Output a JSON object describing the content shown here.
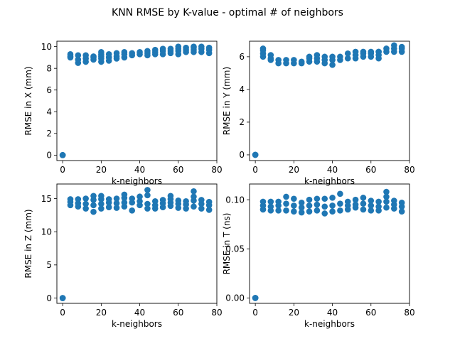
{
  "suptitle": "KNN RMSE by K-value - optimal # of neighbors",
  "marker_color": "#1f77b4",
  "chart_data": [
    {
      "type": "scatter",
      "xlabel": "k-neighbors",
      "ylabel": "RMSE in X (mm)",
      "xlim": [
        -3,
        80
      ],
      "ylim": [
        -0.5,
        10.5
      ],
      "xticks": [
        0,
        20,
        40,
        60,
        80
      ],
      "yticks": [
        0,
        2,
        4,
        6,
        8,
        10
      ],
      "ytick_labels": [
        "0",
        "2",
        "4",
        "6",
        "8",
        "10"
      ],
      "x": [
        0,
        0,
        0,
        4,
        4,
        4,
        8,
        8,
        8,
        12,
        12,
        12,
        16,
        16,
        16,
        20,
        20,
        20,
        20,
        20,
        24,
        24,
        24,
        28,
        28,
        28,
        32,
        32,
        32,
        36,
        36,
        40,
        40,
        44,
        44,
        44,
        48,
        48,
        48,
        52,
        52,
        52,
        56,
        56,
        56,
        60,
        60,
        60,
        60,
        64,
        64,
        64,
        68,
        68,
        68,
        68,
        72,
        72,
        72,
        76,
        76,
        76
      ],
      "y": [
        0,
        0,
        0,
        9.0,
        9.3,
        9.1,
        8.5,
        8.8,
        9.2,
        8.6,
        8.9,
        9.2,
        8.8,
        9.0,
        9.1,
        8.6,
        8.9,
        9.1,
        9.3,
        9.5,
        8.7,
        9.0,
        9.3,
        8.9,
        9.1,
        9.4,
        9.0,
        9.3,
        9.5,
        9.2,
        9.4,
        9.3,
        9.5,
        9.2,
        9.4,
        9.6,
        9.3,
        9.5,
        9.7,
        9.3,
        9.6,
        9.8,
        9.4,
        9.6,
        9.8,
        9.3,
        9.6,
        9.8,
        10.0,
        9.5,
        9.7,
        9.9,
        9.5,
        9.7,
        9.9,
        10.0,
        9.5,
        9.8,
        10.0,
        9.4,
        9.7,
        9.9
      ]
    },
    {
      "type": "scatter",
      "xlabel": "k-neighbors",
      "ylabel": "RMSE in Y (mm)",
      "xlim": [
        -3,
        80
      ],
      "ylim": [
        -0.35,
        6.95
      ],
      "xticks": [
        0,
        20,
        40,
        60,
        80
      ],
      "yticks": [
        0,
        2,
        4,
        6
      ],
      "ytick_labels": [
        "0",
        "2",
        "4",
        "6"
      ],
      "x": [
        0,
        0,
        0,
        4,
        4,
        4,
        4,
        8,
        8,
        8,
        12,
        12,
        16,
        16,
        20,
        20,
        24,
        24,
        28,
        28,
        28,
        32,
        32,
        32,
        36,
        36,
        36,
        40,
        40,
        40,
        44,
        44,
        48,
        48,
        52,
        52,
        52,
        56,
        56,
        56,
        60,
        60,
        60,
        64,
        64,
        64,
        64,
        68,
        68,
        72,
        72,
        72,
        76,
        76,
        76
      ],
      "y": [
        0,
        0,
        0,
        6.0,
        6.2,
        6.4,
        6.5,
        5.8,
        5.9,
        6.1,
        5.6,
        5.8,
        5.6,
        5.8,
        5.6,
        5.8,
        5.6,
        5.7,
        5.7,
        5.9,
        6.0,
        5.7,
        5.9,
        6.1,
        5.6,
        5.8,
        6.0,
        5.5,
        5.8,
        6.0,
        5.8,
        6.0,
        5.9,
        6.2,
        5.9,
        6.1,
        6.3,
        6.0,
        6.2,
        6.3,
        6.0,
        6.2,
        6.3,
        5.9,
        6.1,
        6.3,
        6.3,
        6.3,
        6.5,
        6.3,
        6.5,
        6.7,
        6.3,
        6.5,
        6.6
      ]
    },
    {
      "type": "scatter",
      "xlabel": "k-neighbors",
      "ylabel": "RMSE in Z (mm)",
      "xlim": [
        -3,
        80
      ],
      "ylim": [
        -0.8,
        17.2
      ],
      "xticks": [
        0,
        20,
        40,
        60,
        80
      ],
      "yticks": [
        0,
        5,
        10,
        15
      ],
      "ytick_labels": [
        "0",
        "5",
        "10",
        "15"
      ],
      "x": [
        0,
        0,
        0,
        4,
        4,
        4,
        8,
        8,
        8,
        12,
        12,
        12,
        16,
        16,
        16,
        16,
        20,
        20,
        20,
        20,
        24,
        24,
        24,
        28,
        28,
        28,
        32,
        32,
        32,
        32,
        36,
        36,
        36,
        40,
        40,
        40,
        44,
        44,
        44,
        44,
        48,
        48,
        48,
        52,
        52,
        52,
        56,
        56,
        56,
        56,
        60,
        60,
        60,
        64,
        64,
        64,
        68,
        68,
        68,
        68,
        72,
        72,
        72,
        76,
        76,
        76
      ],
      "y": [
        0,
        0,
        0,
        14.0,
        14.5,
        14.9,
        13.8,
        14.3,
        14.9,
        13.5,
        14.2,
        15.0,
        13.0,
        14.0,
        14.8,
        15.4,
        13.5,
        14.2,
        14.9,
        15.4,
        13.7,
        14.4,
        14.9,
        13.6,
        14.3,
        15.0,
        13.8,
        14.4,
        15.1,
        15.6,
        13.2,
        14.4,
        15.0,
        14.0,
        14.6,
        15.3,
        13.5,
        14.2,
        15.5,
        16.3,
        13.5,
        14.0,
        14.6,
        13.7,
        14.3,
        14.8,
        13.9,
        14.4,
        14.9,
        15.4,
        13.6,
        14.2,
        14.7,
        13.5,
        14.1,
        14.6,
        13.8,
        14.7,
        15.3,
        16.1,
        13.5,
        14.2,
        14.8,
        13.3,
        14.0,
        14.5
      ]
    },
    {
      "type": "scatter",
      "xlabel": "k-neighbors",
      "ylabel": "RMSE in T (ns)",
      "xlim": [
        -3,
        80
      ],
      "ylim": [
        -0.0055,
        0.116
      ],
      "xticks": [
        0,
        20,
        40,
        60,
        80
      ],
      "yticks": [
        0,
        0.05,
        0.1
      ],
      "ytick_labels": [
        "0.00",
        "0.05",
        "0.10"
      ],
      "x": [
        0,
        0,
        0,
        4,
        4,
        4,
        8,
        8,
        8,
        12,
        12,
        12,
        16,
        16,
        16,
        20,
        20,
        20,
        24,
        24,
        24,
        28,
        28,
        28,
        32,
        32,
        32,
        36,
        36,
        36,
        40,
        40,
        40,
        44,
        44,
        44,
        48,
        48,
        48,
        52,
        52,
        52,
        56,
        56,
        56,
        60,
        60,
        60,
        64,
        64,
        64,
        68,
        68,
        68,
        68,
        72,
        72,
        72,
        76,
        76,
        76
      ],
      "y": [
        0,
        0,
        0,
        0.09,
        0.094,
        0.098,
        0.089,
        0.093,
        0.098,
        0.089,
        0.094,
        0.098,
        0.089,
        0.096,
        0.103,
        0.088,
        0.094,
        0.101,
        0.087,
        0.092,
        0.097,
        0.088,
        0.094,
        0.1,
        0.089,
        0.095,
        0.101,
        0.086,
        0.093,
        0.101,
        0.088,
        0.094,
        0.102,
        0.089,
        0.096,
        0.106,
        0.09,
        0.094,
        0.098,
        0.092,
        0.095,
        0.1,
        0.09,
        0.096,
        0.102,
        0.089,
        0.094,
        0.099,
        0.089,
        0.093,
        0.098,
        0.092,
        0.098,
        0.103,
        0.108,
        0.091,
        0.095,
        0.099,
        0.088,
        0.093,
        0.097
      ]
    }
  ]
}
